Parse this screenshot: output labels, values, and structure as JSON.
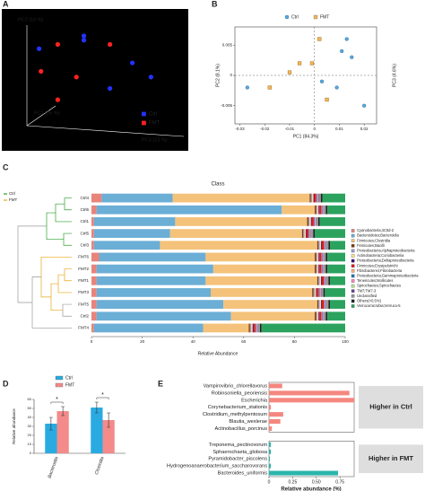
{
  "chart_data": [
    {
      "type": "scatter",
      "label": "A",
      "background": "#000000",
      "x_label": "PC1 (25 %)",
      "y_label": "PC2 (16 %)",
      "z_label": "PC3 (13 %)",
      "xlim": [
        0,
        100
      ],
      "ylim": [
        0,
        100
      ],
      "legend": "lower right",
      "series": [
        {
          "name": "Ctrl",
          "color": "#2233ff",
          "marker": "circle",
          "x": [
            20,
            44,
            44,
            70,
            80,
            58
          ],
          "y": [
            72,
            81,
            78,
            62,
            52,
            44
          ]
        },
        {
          "name": "FMT",
          "color": "#ff2222",
          "marker": "circle",
          "x": [
            30,
            58,
            21,
            40,
            30
          ],
          "y": [
            75,
            75,
            56,
            52,
            36
          ]
        }
      ]
    },
    {
      "type": "scatter",
      "label": "B",
      "x_label": "PC1 (84.3%)",
      "y_label": "PC2 (8.1%)",
      "z_label": "PC3 (4.6%)",
      "xlim": [
        -0.032,
        0.025
      ],
      "xticks": [
        -0.03,
        -0.02,
        -0.01,
        0,
        0.01,
        0.02
      ],
      "ylim": [
        -0.008,
        0.008
      ],
      "yticks": [
        -0.005,
        0,
        0.005
      ],
      "zero_lines": true,
      "legend": "top",
      "series": [
        {
          "name": "Ctrl",
          "color": "#5aa9e0",
          "marker": "circle",
          "x": [
            0.013,
            0.011,
            0.015,
            0.02,
            -0.027,
            0.003,
            0.009
          ],
          "y": [
            0.006,
            0.004,
            0.003,
            -0.005,
            -0.002,
            -0.001,
            -0.002
          ]
        },
        {
          "name": "FMT",
          "color": "#f5b75b",
          "marker": "square",
          "x": [
            -0.018,
            -0.001,
            -0.006,
            0.002,
            0.005,
            -0.01
          ],
          "y": [
            -0.002,
            0.002,
            0.002,
            0.006,
            -0.004,
            0.0005
          ]
        }
      ]
    },
    {
      "type": "stacked_bar",
      "orientation": "horizontal",
      "label": "C",
      "title": "Class",
      "x_label": "Relative Abundance",
      "xlim": [
        0,
        100
      ],
      "xticks": [
        0,
        20,
        40,
        60,
        80,
        100
      ],
      "legend": "right",
      "groups": [
        {
          "name": "Ctrl",
          "color": "#2ca02c"
        },
        {
          "name": "FMT",
          "color": "#e6a817"
        }
      ],
      "categories": [
        "Ctrl4",
        "Ctrl6",
        "Ctrl1",
        "Ctrl5",
        "Ctrl3",
        "FMT6",
        "FMT2",
        "FMT1",
        "FMT3",
        "FMT5",
        "Ctrl2",
        "FMT4"
      ],
      "series": [
        {
          "name": "Cyanobacteria;4C0d-2",
          "color": "#e8847a",
          "values": [
            4,
            2,
            1,
            1,
            1,
            3,
            2,
            2,
            2,
            2,
            2,
            1
          ]
        },
        {
          "name": "Bacteroidetes;Bacteroidia",
          "color": "#6baed6",
          "values": [
            28,
            73,
            32,
            30,
            26,
            42,
            46,
            43,
            45,
            50,
            53,
            43
          ]
        },
        {
          "name": "Firmicutes;Clostridia",
          "color": "#f4c27a",
          "values": [
            54,
            13,
            52,
            52,
            62,
            43,
            40,
            44,
            40,
            37,
            33,
            18
          ]
        },
        {
          "name": "Firmicutes;Bacilli",
          "color": "#7f3b08",
          "values": [
            0.5,
            0.5,
            0.5,
            0.5,
            0.5,
            0.5,
            0.5,
            0.5,
            0.5,
            0.5,
            0.5,
            0.5
          ]
        },
        {
          "name": "Proteobacteria;Alphaproteobacteria",
          "color": "#9e9ac8",
          "values": [
            0.5,
            0.5,
            0.5,
            0.5,
            0.5,
            0.5,
            0.5,
            0.5,
            0.5,
            0.5,
            0.5,
            0.5
          ]
        },
        {
          "name": "Actinobacteria;Coriobacteriia",
          "color": "#fee08b",
          "values": [
            0.5,
            0.5,
            0.5,
            0.5,
            0.5,
            0.5,
            0.5,
            0.5,
            0.5,
            0.5,
            0.5,
            0.5
          ]
        },
        {
          "name": "Proteobacteria;Deltaproteobacteria",
          "color": "#3f007d",
          "values": [
            0.3,
            0.3,
            0.3,
            0.3,
            0.3,
            0.3,
            0.3,
            0.3,
            0.3,
            0.3,
            0.3,
            0.3
          ]
        },
        {
          "name": "Firmicutes;Erysipelotrichi",
          "color": "#e31a1c",
          "values": [
            0.8,
            0.8,
            0.8,
            0.8,
            0.8,
            0.8,
            0.8,
            0.8,
            0.8,
            0.8,
            0.8,
            0.8
          ]
        },
        {
          "name": "Fibrobacteres;Fibrobacteria",
          "color": "#fdae6b",
          "values": [
            0.1,
            0.1,
            0.1,
            0.1,
            0.1,
            0.1,
            0.1,
            0.1,
            0.1,
            0.1,
            0.1,
            0.1
          ]
        },
        {
          "name": "Proteobacteria;Gammaproteobacteria",
          "color": "#1f78b4",
          "values": [
            0.3,
            0.3,
            0.3,
            0.3,
            0.3,
            0.3,
            0.3,
            0.3,
            0.3,
            0.3,
            0.3,
            0.3
          ]
        },
        {
          "name": "Tenericutes;Mollicutes",
          "color": "#f781bf",
          "values": [
            0.3,
            0.3,
            0.3,
            0.3,
            0.3,
            0.3,
            0.3,
            0.3,
            0.3,
            0.3,
            0.3,
            0.3
          ]
        },
        {
          "name": "Spirochaetes;Spirochaetes",
          "color": "#b2df8a",
          "values": [
            0.1,
            0.1,
            0.1,
            0.1,
            0.1,
            0.1,
            0.1,
            0.1,
            0.1,
            0.1,
            0.1,
            0.1
          ]
        },
        {
          "name": "TM7;TM7-3",
          "color": "#6a3d9a",
          "values": [
            0.2,
            0.2,
            0.2,
            0.2,
            0.2,
            0.2,
            0.2,
            0.2,
            0.2,
            0.2,
            0.2,
            0.2
          ]
        },
        {
          "name": "Unclassified",
          "color": "#969696",
          "values": [
            0.8,
            0.8,
            0.8,
            0.8,
            0.8,
            0.8,
            0.8,
            0.8,
            0.8,
            0.8,
            0.8,
            0.8
          ]
        },
        {
          "name": "Others(<0.5%)",
          "color": "#222222",
          "values": [
            0.6,
            0.6,
            0.6,
            0.6,
            0.6,
            0.6,
            0.6,
            0.6,
            0.6,
            0.6,
            0.6,
            0.6
          ]
        },
        {
          "name": "Verrucomicrobia;Verruco-5",
          "color": "#2ca25f",
          "values": [
            9,
            7,
            10,
            12,
            6,
            7,
            7,
            6,
            8,
            6,
            7,
            33
          ]
        }
      ]
    },
    {
      "type": "bar",
      "label": "D",
      "y_label": "Relative abundance",
      "ylim": [
        0,
        60
      ],
      "yticks": [
        0,
        10,
        20,
        30,
        40,
        50,
        60
      ],
      "legend": "top",
      "categories": [
        "Bacteroidia",
        "Clostridia"
      ],
      "annotations": [
        "*",
        "*"
      ],
      "series": [
        {
          "name": "Ctrl",
          "color": "#29abe2",
          "values": [
            33,
            51
          ],
          "errors": [
            7,
            6
          ]
        },
        {
          "name": "FMT",
          "color": "#f48a8a",
          "values": [
            47,
            37
          ],
          "errors": [
            5,
            8
          ]
        }
      ]
    },
    {
      "type": "bar",
      "orientation": "horizontal",
      "label": "E",
      "x_label": "Relative abundance (%)",
      "xlim": [
        0,
        0.9
      ],
      "xticks": [
        0,
        0.25,
        {
          "value": 0.5,
          "label": "0.50"
        },
        0.75
      ],
      "categories": [
        "Vampirovibrio_chlorellavorus",
        "Robinsoniella_peoriensis",
        "Escherichia",
        "Corynebacterium_stationis",
        "Clostridium_methylpentosum",
        "Blautia_wexlerae",
        "Actinobacillus_porcinus",
        "Treponema_pectinovorum",
        "Sphaerochaeta_globosa",
        "Pyramidobacter_piscolens",
        "Hydrogenoanaerobacterium_saccharovorans",
        "Bacteroides_uniformis"
      ],
      "series": [
        {
          "name": "Higher in Ctrl",
          "color": "#f4877f",
          "values": [
            0.14,
            0.85,
            0.9,
            0.02,
            0.15,
            0.12,
            0.03,
            null,
            null,
            null,
            null,
            null
          ]
        },
        {
          "name": "Higher in FMT",
          "color": "#2bb5ac",
          "values": [
            null,
            null,
            null,
            null,
            null,
            null,
            null,
            0.02,
            0.02,
            0.01,
            0.02,
            0.73
          ]
        }
      ]
    }
  ]
}
